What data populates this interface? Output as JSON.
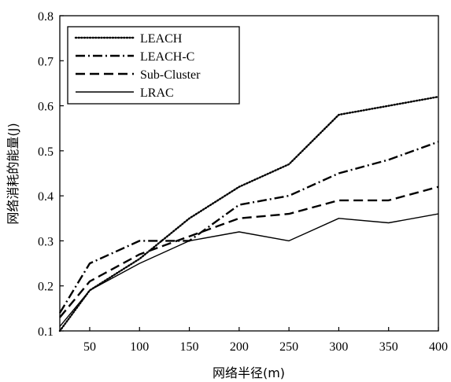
{
  "chart_data": {
    "type": "line",
    "title": "",
    "xlabel": "网络半径(m)",
    "ylabel": "网络消耗的能量(J)",
    "xlim": [
      20,
      400
    ],
    "ylim": [
      0.1,
      0.8
    ],
    "xticks": [
      50,
      100,
      150,
      200,
      250,
      300,
      350,
      400
    ],
    "yticks": [
      0.1,
      0.2,
      0.3,
      0.4,
      0.5,
      0.6,
      0.7,
      0.8
    ],
    "grid": false,
    "legend_position": "top-left",
    "series": [
      {
        "name": "LEACH",
        "line_style": "dotted",
        "x": [
          20,
          50,
          100,
          150,
          200,
          250,
          300,
          350,
          400
        ],
        "y": [
          0.1,
          0.19,
          0.26,
          0.35,
          0.42,
          0.47,
          0.58,
          0.6,
          0.62
        ]
      },
      {
        "name": "LEACH-C",
        "line_style": "dash-dot",
        "x": [
          20,
          50,
          100,
          120,
          150,
          200,
          250,
          300,
          350,
          400
        ],
        "y": [
          0.14,
          0.25,
          0.3,
          0.3,
          0.3,
          0.38,
          0.4,
          0.45,
          0.48,
          0.52
        ]
      },
      {
        "name": "Sub-Cluster",
        "line_style": "dashed",
        "x": [
          20,
          50,
          100,
          150,
          200,
          250,
          300,
          350,
          400
        ],
        "y": [
          0.13,
          0.21,
          0.27,
          0.31,
          0.35,
          0.36,
          0.39,
          0.39,
          0.42
        ]
      },
      {
        "name": "LRAC",
        "line_style": "solid",
        "x": [
          20,
          50,
          100,
          150,
          200,
          250,
          300,
          350,
          400
        ],
        "y": [
          0.11,
          0.19,
          0.25,
          0.3,
          0.32,
          0.3,
          0.35,
          0.34,
          0.36
        ]
      }
    ]
  }
}
